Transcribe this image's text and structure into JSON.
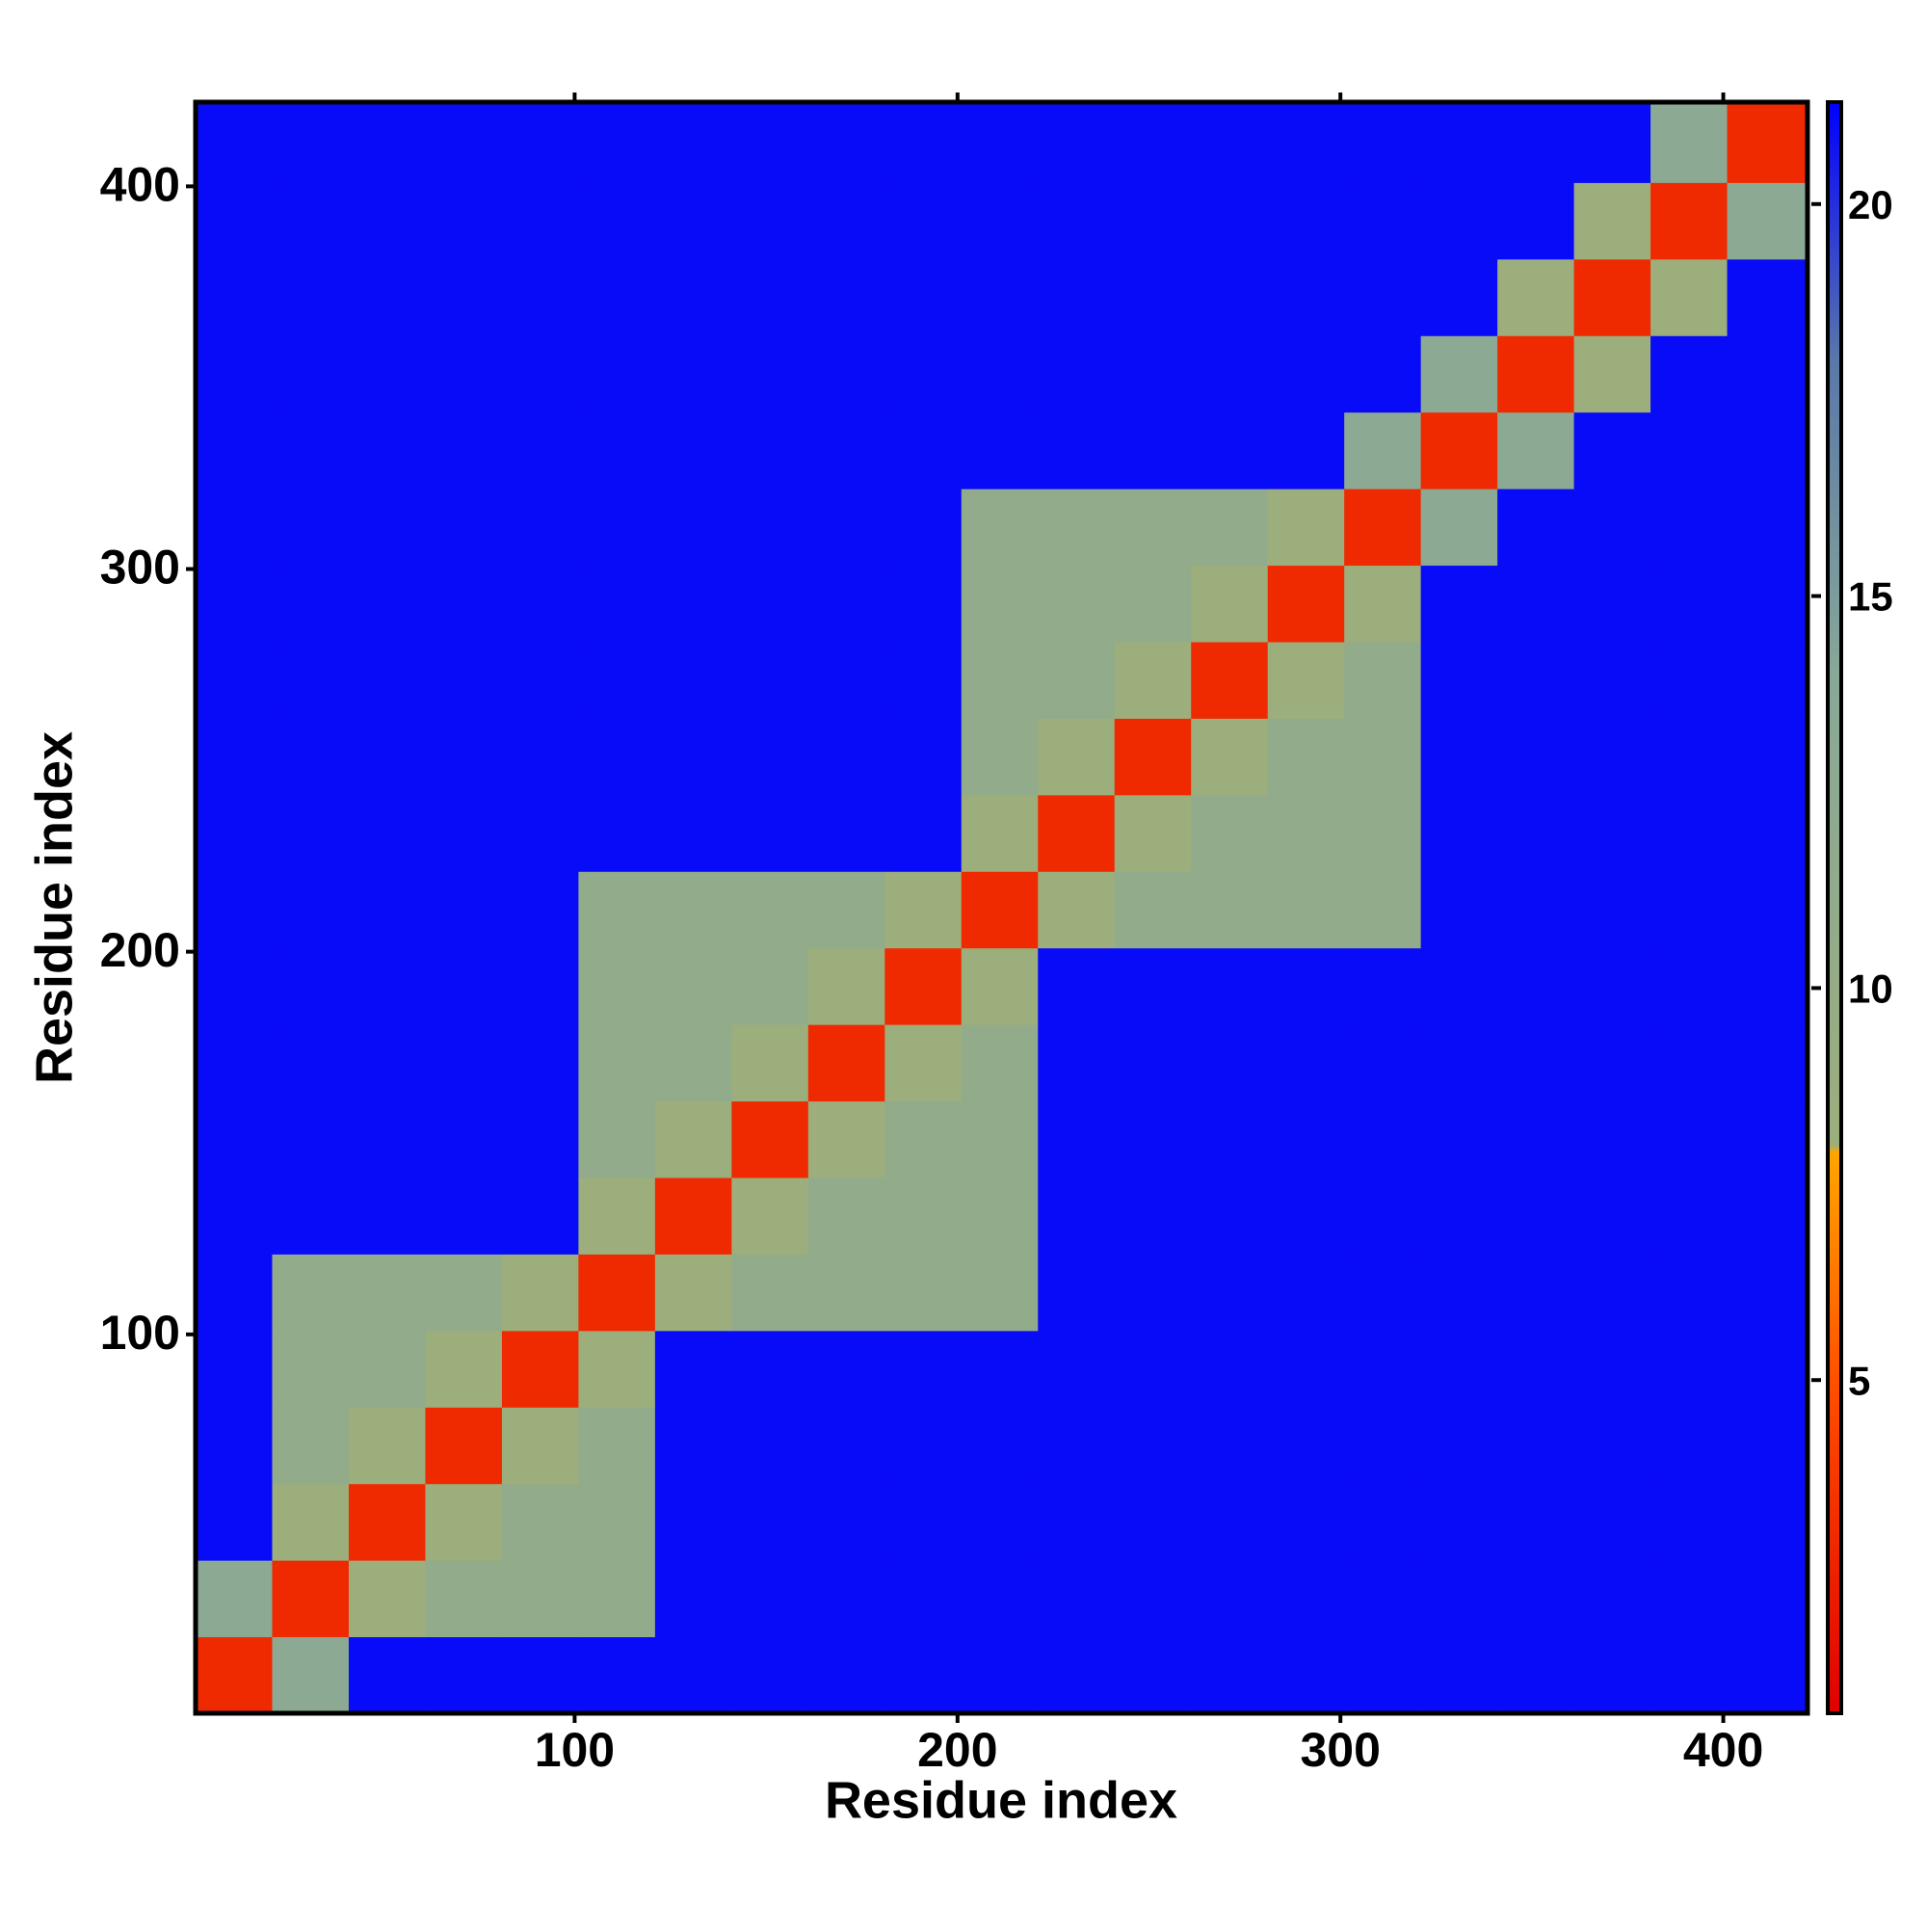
{
  "chart_data": {
    "type": "heatmap",
    "xlabel": "Residue index",
    "ylabel": "Residue index",
    "xlim": [
      1,
      422
    ],
    "ylim": [
      1,
      422
    ],
    "xticks": [
      100,
      200,
      300,
      400
    ],
    "yticks": [
      100,
      200,
      300,
      400
    ],
    "bins": [
      1,
      21,
      41,
      61,
      81,
      101,
      121,
      141,
      161,
      181,
      201,
      221,
      241,
      261,
      281,
      301,
      321,
      341,
      361,
      381,
      401,
      422
    ],
    "z": [
      [
        3,
        13,
        21,
        21,
        21,
        21,
        21,
        21,
        21,
        21,
        21,
        21,
        21,
        21,
        21,
        21,
        21,
        21,
        21,
        21,
        21
      ],
      [
        13,
        3,
        8,
        11,
        11,
        11,
        21,
        21,
        21,
        21,
        21,
        21,
        21,
        21,
        21,
        21,
        21,
        21,
        21,
        21,
        21
      ],
      [
        21,
        8,
        3,
        8,
        11,
        11,
        21,
        21,
        21,
        21,
        21,
        21,
        21,
        21,
        21,
        21,
        21,
        21,
        21,
        21,
        21
      ],
      [
        21,
        11,
        8,
        3,
        8,
        11,
        21,
        21,
        21,
        21,
        21,
        21,
        21,
        21,
        21,
        21,
        21,
        21,
        21,
        21,
        21
      ],
      [
        21,
        11,
        11,
        8,
        3,
        8,
        21,
        21,
        21,
        21,
        21,
        21,
        21,
        21,
        21,
        21,
        21,
        21,
        21,
        21,
        21
      ],
      [
        21,
        11,
        11,
        11,
        8,
        3,
        8,
        11,
        11,
        11,
        11,
        21,
        21,
        21,
        21,
        21,
        21,
        21,
        21,
        21,
        21
      ],
      [
        21,
        21,
        21,
        21,
        21,
        8,
        3,
        8,
        11,
        11,
        11,
        21,
        21,
        21,
        21,
        21,
        21,
        21,
        21,
        21,
        21
      ],
      [
        21,
        21,
        21,
        21,
        21,
        11,
        8,
        3,
        8,
        11,
        11,
        21,
        21,
        21,
        21,
        21,
        21,
        21,
        21,
        21,
        21
      ],
      [
        21,
        21,
        21,
        21,
        21,
        11,
        11,
        8,
        3,
        8,
        11,
        21,
        21,
        21,
        21,
        21,
        21,
        21,
        21,
        21,
        21
      ],
      [
        21,
        21,
        21,
        21,
        21,
        11,
        11,
        11,
        8,
        3,
        8,
        21,
        21,
        21,
        21,
        21,
        21,
        21,
        21,
        21,
        21
      ],
      [
        21,
        21,
        21,
        21,
        21,
        11,
        11,
        11,
        11,
        8,
        3,
        8,
        11,
        11,
        11,
        11,
        21,
        21,
        21,
        21,
        21
      ],
      [
        21,
        21,
        21,
        21,
        21,
        21,
        21,
        21,
        21,
        21,
        8,
        3,
        8,
        11,
        11,
        11,
        21,
        21,
        21,
        21,
        21
      ],
      [
        21,
        21,
        21,
        21,
        21,
        21,
        21,
        21,
        21,
        21,
        11,
        8,
        3,
        8,
        11,
        11,
        21,
        21,
        21,
        21,
        21
      ],
      [
        21,
        21,
        21,
        21,
        21,
        21,
        21,
        21,
        21,
        21,
        11,
        11,
        8,
        3,
        8,
        11,
        21,
        21,
        21,
        21,
        21
      ],
      [
        21,
        21,
        21,
        21,
        21,
        21,
        21,
        21,
        21,
        21,
        11,
        11,
        11,
        8,
        3,
        8,
        21,
        21,
        21,
        21,
        21
      ],
      [
        21,
        21,
        21,
        21,
        21,
        21,
        21,
        21,
        21,
        21,
        11,
        11,
        11,
        11,
        8,
        3,
        13,
        21,
        21,
        21,
        21
      ],
      [
        21,
        21,
        21,
        21,
        21,
        21,
        21,
        21,
        21,
        21,
        21,
        21,
        21,
        21,
        21,
        13,
        3,
        13,
        21,
        21,
        21
      ],
      [
        21,
        21,
        21,
        21,
        21,
        21,
        21,
        21,
        21,
        21,
        21,
        21,
        21,
        21,
        21,
        21,
        13,
        3,
        8,
        21,
        21
      ],
      [
        21,
        21,
        21,
        21,
        21,
        21,
        21,
        21,
        21,
        21,
        21,
        21,
        21,
        21,
        21,
        21,
        21,
        8,
        3,
        8,
        21
      ],
      [
        21,
        21,
        21,
        21,
        21,
        21,
        21,
        21,
        21,
        21,
        21,
        21,
        21,
        21,
        21,
        21,
        21,
        21,
        8,
        3,
        13
      ],
      [
        21,
        21,
        21,
        21,
        21,
        21,
        21,
        21,
        21,
        21,
        21,
        21,
        21,
        21,
        21,
        21,
        21,
        21,
        21,
        13,
        3
      ]
    ],
    "colorscale": [
      [
        0.75,
        "#e00000"
      ],
      [
        5,
        "#ff5000"
      ],
      [
        7.9,
        "#ffa500"
      ],
      [
        8,
        "#9cae7c"
      ],
      [
        14,
        "#88a898"
      ],
      [
        18,
        "#5a78a8"
      ],
      [
        21.3,
        "#0000ff"
      ]
    ],
    "colorbar": {
      "lim": [
        0.75,
        21.3
      ],
      "ticks": [
        5,
        10,
        15,
        20
      ]
    }
  }
}
